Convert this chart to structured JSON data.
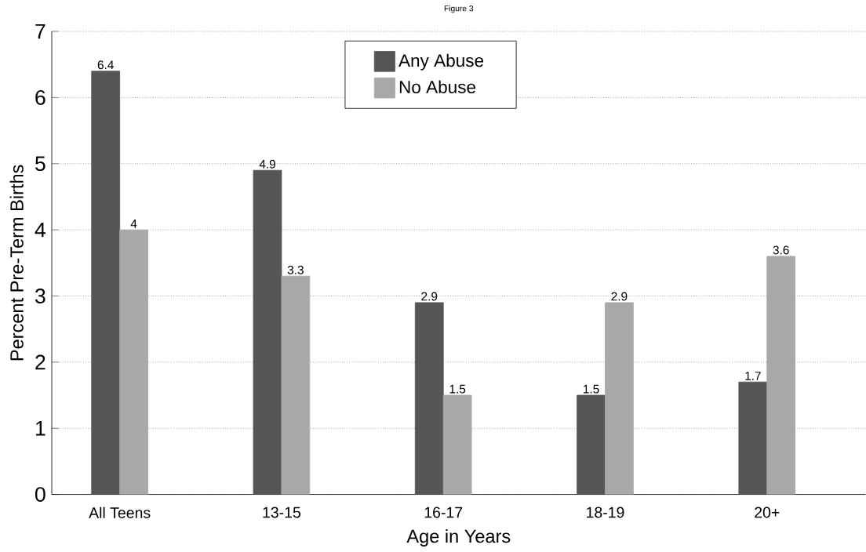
{
  "chart_data": {
    "type": "bar",
    "title": "Figure 3",
    "xlabel": "Age in Years",
    "ylabel": "Percent Pre-Term Births",
    "categories": [
      "All Teens",
      "13-15",
      "16-17",
      "18-19",
      "20+"
    ],
    "series": [
      {
        "name": "Any Abuse",
        "color": "#555555",
        "values": [
          6.4,
          4.9,
          2.9,
          1.5,
          1.7
        ]
      },
      {
        "name": "No Abuse",
        "color": "#a8a8a8",
        "values": [
          4,
          3.3,
          1.5,
          2.9,
          3.6
        ]
      }
    ],
    "ylim": [
      0,
      7
    ],
    "yticks": [
      0,
      1,
      2,
      3,
      4,
      5,
      6,
      7
    ],
    "grid": "y",
    "legend": "top",
    "data_labels": true
  }
}
